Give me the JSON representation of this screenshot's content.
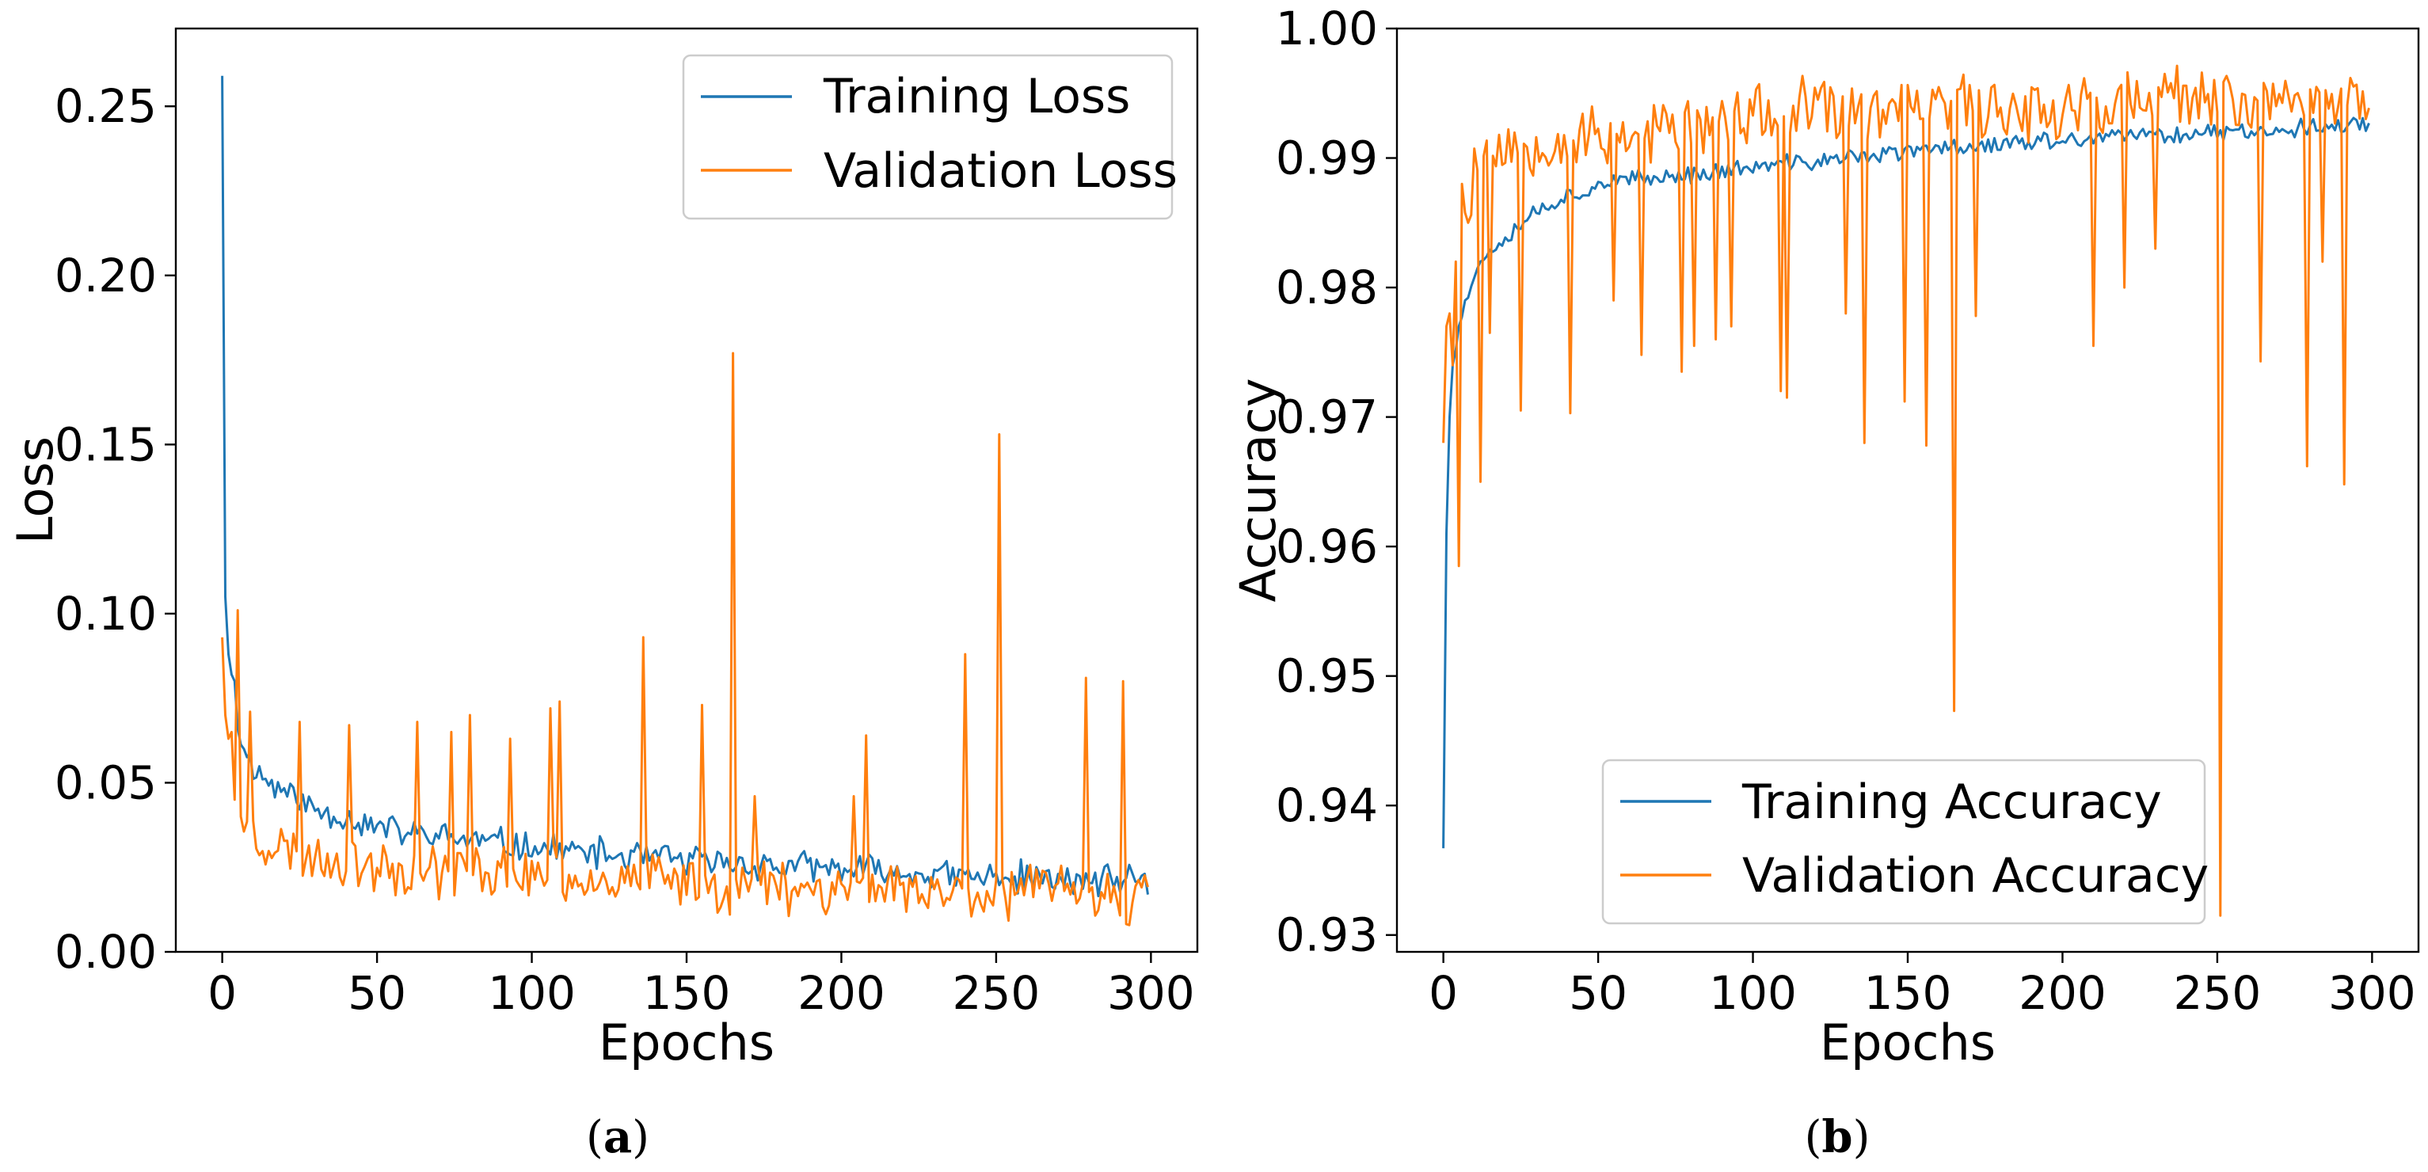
{
  "colors": {
    "training": "#1f77b4",
    "validation": "#ff7f0e",
    "axis": "#000000",
    "legend_border": "#cccccc"
  },
  "chart_data": [
    {
      "id": "a",
      "type": "line",
      "caption": "a",
      "xlabel": "Epochs",
      "ylabel": "Loss",
      "xlim": [
        -15,
        315
      ],
      "ylim": [
        0.0,
        0.273
      ],
      "xticks": [
        0,
        50,
        100,
        150,
        200,
        250,
        300
      ],
      "xtick_labels": [
        "0",
        "50",
        "100",
        "150",
        "200",
        "250",
        "300"
      ],
      "yticks": [
        0.0,
        0.05,
        0.1,
        0.15,
        0.2,
        0.25
      ],
      "ytick_labels": [
        "0.00",
        "0.05",
        "0.10",
        "0.15",
        "0.20",
        "0.25"
      ],
      "grid": false,
      "legend_position": "top-right",
      "series": [
        {
          "name": "Training Loss",
          "anchors": [
            [
              0,
              0.259
            ],
            [
              1,
              0.105
            ],
            [
              2,
              0.088
            ],
            [
              3,
              0.082
            ],
            [
              4,
              0.08
            ],
            [
              5,
              0.066
            ],
            [
              7,
              0.06
            ],
            [
              10,
              0.055
            ],
            [
              15,
              0.05
            ],
            [
              20,
              0.048
            ],
            [
              30,
              0.042
            ],
            [
              40,
              0.04
            ],
            [
              50,
              0.037
            ],
            [
              60,
              0.035
            ],
            [
              70,
              0.034
            ],
            [
              80,
              0.033
            ],
            [
              90,
              0.032
            ],
            [
              100,
              0.031
            ],
            [
              110,
              0.03
            ],
            [
              120,
              0.029
            ],
            [
              130,
              0.028
            ],
            [
              140,
              0.028
            ],
            [
              150,
              0.027
            ],
            [
              160,
              0.026
            ],
            [
              170,
              0.026
            ],
            [
              180,
              0.025
            ],
            [
              190,
              0.025
            ],
            [
              200,
              0.024
            ],
            [
              210,
              0.024
            ],
            [
              220,
              0.023
            ],
            [
              230,
              0.023
            ],
            [
              240,
              0.022
            ],
            [
              250,
              0.022
            ],
            [
              260,
              0.022
            ],
            [
              270,
              0.021
            ],
            [
              280,
              0.021
            ],
            [
              290,
              0.021
            ],
            [
              299,
              0.02
            ]
          ],
          "noise": 0.004,
          "seed": 11
        },
        {
          "name": "Validation Loss",
          "anchors": [
            [
              0,
              0.093
            ],
            [
              1,
              0.07
            ],
            [
              2,
              0.063
            ],
            [
              3,
              0.065
            ],
            [
              4,
              0.045
            ],
            [
              5,
              0.101
            ],
            [
              6,
              0.04
            ],
            [
              10,
              0.035
            ],
            [
              20,
              0.03
            ],
            [
              40,
              0.027
            ],
            [
              60,
              0.025
            ],
            [
              80,
              0.024
            ],
            [
              100,
              0.023
            ],
            [
              120,
              0.022
            ],
            [
              140,
              0.021
            ],
            [
              160,
              0.02
            ],
            [
              180,
              0.02
            ],
            [
              200,
              0.019
            ],
            [
              220,
              0.019
            ],
            [
              240,
              0.018
            ],
            [
              260,
              0.018
            ],
            [
              280,
              0.018
            ],
            [
              299,
              0.015
            ]
          ],
          "noise": 0.007,
          "seed": 23,
          "spikes": [
            [
              9,
              0.071
            ],
            [
              25,
              0.068
            ],
            [
              41,
              0.067
            ],
            [
              63,
              0.068
            ],
            [
              74,
              0.065
            ],
            [
              80,
              0.07
            ],
            [
              93,
              0.063
            ],
            [
              106,
              0.072
            ],
            [
              109,
              0.074
            ],
            [
              136,
              0.093
            ],
            [
              155,
              0.073
            ],
            [
              165,
              0.177
            ],
            [
              172,
              0.046
            ],
            [
              204,
              0.046
            ],
            [
              208,
              0.064
            ],
            [
              240,
              0.088
            ],
            [
              251,
              0.153
            ],
            [
              279,
              0.081
            ],
            [
              291,
              0.08
            ]
          ]
        }
      ]
    },
    {
      "id": "b",
      "type": "line",
      "caption": "b",
      "xlabel": "Epochs",
      "ylabel": "Accuracy",
      "xlim": [
        -15,
        315
      ],
      "ylim": [
        0.9287,
        1.0
      ],
      "xticks": [
        0,
        50,
        100,
        150,
        200,
        250,
        300
      ],
      "xtick_labels": [
        "0",
        "50",
        "100",
        "150",
        "200",
        "250",
        "300"
      ],
      "yticks": [
        0.93,
        0.94,
        0.95,
        0.96,
        0.97,
        0.98,
        0.99,
        1.0
      ],
      "ytick_labels": [
        "0.93",
        "0.94",
        "0.95",
        "0.96",
        "0.97",
        "0.98",
        "0.99",
        "1.00"
      ],
      "grid": false,
      "legend_position": "bottom-center",
      "series": [
        {
          "name": "Training Accuracy",
          "anchors": [
            [
              0,
              0.9367
            ],
            [
              1,
              0.961
            ],
            [
              2,
              0.97
            ],
            [
              3,
              0.974
            ],
            [
              5,
              0.977
            ],
            [
              7,
              0.979
            ],
            [
              10,
              0.981
            ],
            [
              15,
              0.983
            ],
            [
              20,
              0.984
            ],
            [
              30,
              0.986
            ],
            [
              40,
              0.987
            ],
            [
              50,
              0.988
            ],
            [
              70,
              0.9885
            ],
            [
              90,
              0.989
            ],
            [
              110,
              0.9895
            ],
            [
              130,
              0.99
            ],
            [
              150,
              0.9905
            ],
            [
              170,
              0.991
            ],
            [
              190,
              0.9912
            ],
            [
              210,
              0.9915
            ],
            [
              230,
              0.9918
            ],
            [
              250,
              0.992
            ],
            [
              270,
              0.9922
            ],
            [
              290,
              0.9925
            ],
            [
              299,
              0.9927
            ]
          ],
          "noise": 0.0006,
          "seed": 37
        },
        {
          "name": "Validation Accuracy",
          "anchors": [
            [
              0,
              0.968
            ],
            [
              1,
              0.977
            ],
            [
              2,
              0.978
            ],
            [
              3,
              0.974
            ],
            [
              4,
              0.982
            ],
            [
              5,
              0.9585
            ],
            [
              6,
              0.988
            ],
            [
              8,
              0.985
            ],
            [
              10,
              0.99
            ],
            [
              20,
              0.991
            ],
            [
              40,
              0.9915
            ],
            [
              60,
              0.992
            ],
            [
              80,
              0.9925
            ],
            [
              100,
              0.993
            ],
            [
              120,
              0.9935
            ],
            [
              140,
              0.9935
            ],
            [
              160,
              0.994
            ],
            [
              180,
              0.994
            ],
            [
              200,
              0.994
            ],
            [
              220,
              0.9943
            ],
            [
              240,
              0.9945
            ],
            [
              260,
              0.9945
            ],
            [
              280,
              0.9945
            ],
            [
              299,
              0.995
            ]
          ],
          "noise": 0.0022,
          "seed": 53,
          "dips": [
            [
              12,
              0.965
            ],
            [
              15,
              0.9765
            ],
            [
              25,
              0.9705
            ],
            [
              41,
              0.9703
            ],
            [
              55,
              0.979
            ],
            [
              64,
              0.9748
            ],
            [
              77,
              0.9735
            ],
            [
              81,
              0.9755
            ],
            [
              88,
              0.976
            ],
            [
              93,
              0.977
            ],
            [
              109,
              0.972
            ],
            [
              111,
              0.9715
            ],
            [
              130,
              0.978
            ],
            [
              136,
              0.968
            ],
            [
              149,
              0.9712
            ],
            [
              156,
              0.9678
            ],
            [
              165,
              0.9473
            ],
            [
              172,
              0.9778
            ],
            [
              210,
              0.9755
            ],
            [
              220,
              0.98
            ],
            [
              230,
              0.983
            ],
            [
              251,
              0.9315
            ],
            [
              264,
              0.9743
            ],
            [
              279,
              0.9662
            ],
            [
              284,
              0.982
            ],
            [
              291,
              0.9648
            ]
          ]
        }
      ]
    }
  ]
}
